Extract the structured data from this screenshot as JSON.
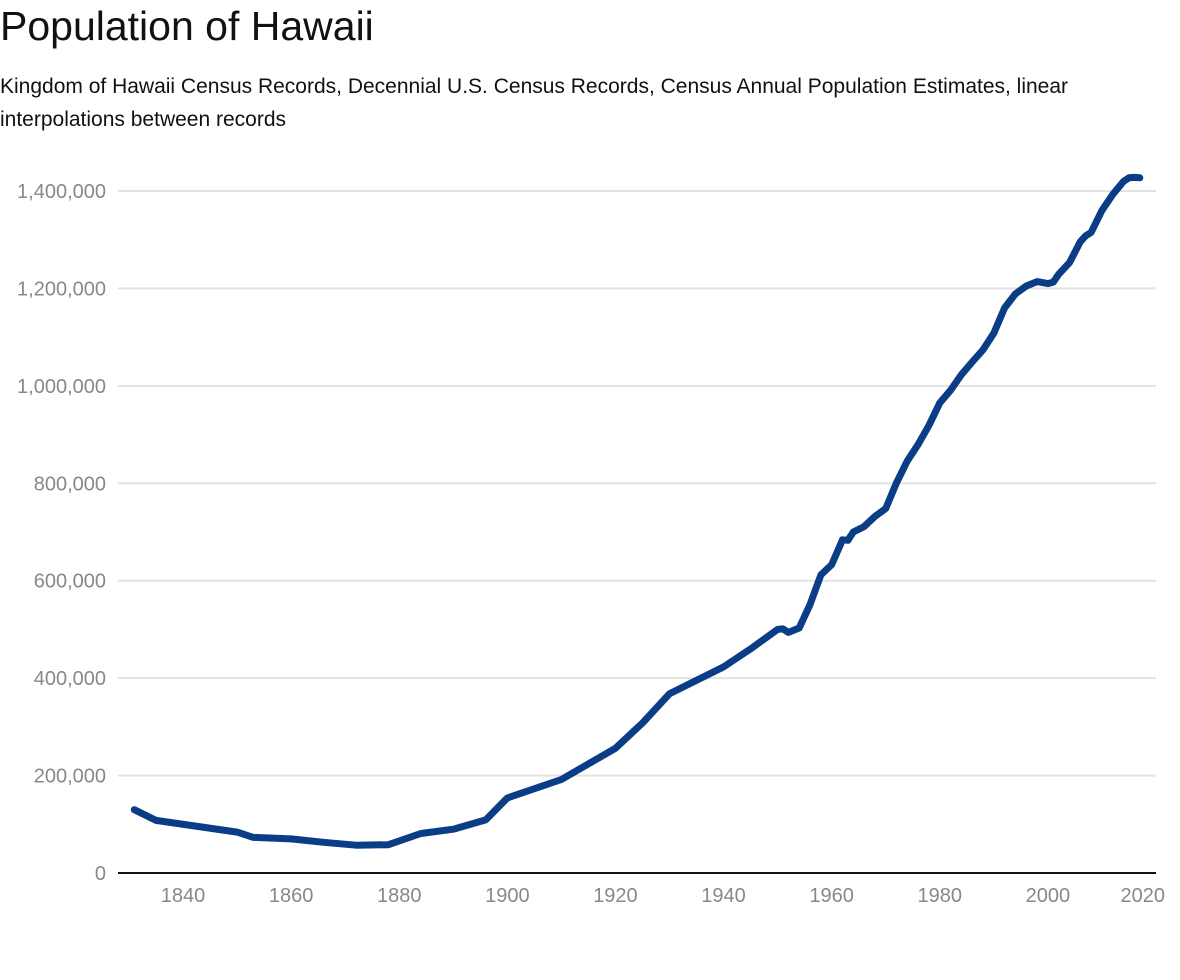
{
  "title": "Population of Hawaii",
  "subtitle": "Kingdom of Hawaii Census Records, Decennial U.S. Census Records, Census Annual Population Estimates, linear interpolations between records",
  "chart_data": {
    "type": "line",
    "title": "Population of Hawaii",
    "subtitle": "Kingdom of Hawaii Census Records, Decennial U.S. Census Records, Census Annual Population Estimates, linear interpolations between records",
    "xlabel": "",
    "ylabel": "",
    "xlim": [
      1826,
      2020
    ],
    "ylim": [
      0,
      1400000
    ],
    "x_ticks": [
      1840,
      1860,
      1880,
      1900,
      1920,
      1940,
      1960,
      1980,
      2000,
      2020
    ],
    "y_ticks": [
      0,
      200000,
      400000,
      600000,
      800000,
      1000000,
      1200000,
      1400000
    ],
    "y_tick_labels": [
      "0",
      "200,000",
      "400,000",
      "600,000",
      "800,000",
      "1,000,000",
      "1,200,000",
      "1,400,000"
    ],
    "grid": true,
    "legend": "none",
    "line_color": "#0b3d86",
    "series": [
      {
        "x": [
          1831,
          1835,
          1850,
          1853,
          1860,
          1866,
          1872,
          1878,
          1884,
          1890,
          1896,
          1900,
          1910,
          1920,
          1925,
          1930,
          1940,
          1945,
          1950,
          1951,
          1952,
          1954,
          1956,
          1958,
          1960,
          1962,
          1963,
          1964,
          1966,
          1968,
          1970,
          1972,
          1974,
          1976,
          1978,
          1980,
          1982,
          1984,
          1986,
          1988,
          1990,
          1992,
          1994,
          1996,
          1998,
          1999,
          2000,
          2001,
          2002,
          2004,
          2006,
          2007,
          2008,
          2010,
          2012,
          2014,
          2015,
          2016,
          2017
        ],
        "y": [
          130000,
          108000,
          84000,
          73000,
          70000,
          63000,
          57000,
          58000,
          81000,
          90000,
          109000,
          154000,
          192000,
          256000,
          308000,
          368000,
          423000,
          460000,
          500000,
          501000,
          494000,
          503000,
          551000,
          612000,
          633000,
          684000,
          683000,
          700000,
          711000,
          732000,
          748000,
          801000,
          846000,
          880000,
          919000,
          965000,
          991000,
          1023000,
          1049000,
          1074000,
          1108000,
          1160000,
          1189000,
          1205000,
          1214000,
          1212000,
          1210000,
          1213000,
          1229000,
          1253000,
          1296000,
          1308000,
          1315000,
          1360000,
          1393000,
          1420000,
          1427000,
          1428000,
          1427000
        ]
      }
    ]
  }
}
